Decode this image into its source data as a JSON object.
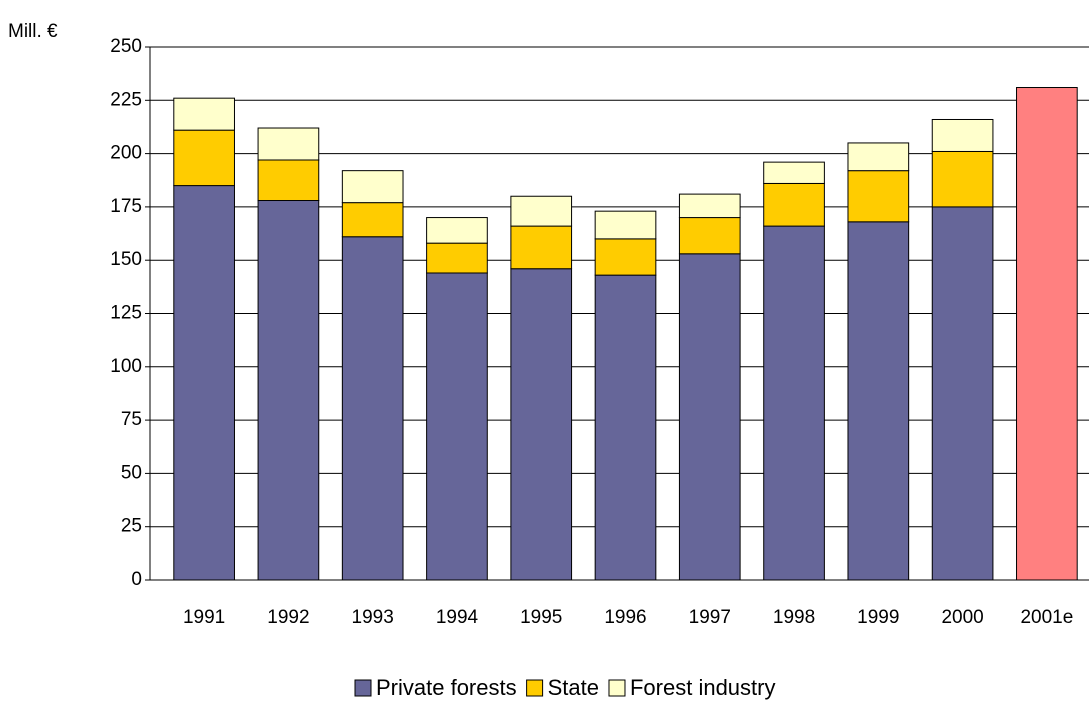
{
  "chart_data": {
    "type": "stacked_bar",
    "y_label": "Mill. €",
    "categories": [
      "1991",
      "1992",
      "1993",
      "1994",
      "1995",
      "1996",
      "1997",
      "1998",
      "1999",
      "2000",
      "2001e"
    ],
    "series": [
      {
        "name": "Private forests",
        "color": "#666699",
        "values": [
          185,
          178,
          161,
          144,
          146,
          143,
          153,
          166,
          168,
          175,
          null
        ]
      },
      {
        "name": "State",
        "color": "#ffcc00",
        "values": [
          26,
          19,
          16,
          14,
          20,
          17,
          17,
          20,
          24,
          26,
          null
        ]
      },
      {
        "name": "Forest industry",
        "color": "#ffffcc",
        "values": [
          15,
          15,
          15,
          12,
          14,
          13,
          11,
          10,
          13,
          15,
          null
        ]
      },
      {
        "color": "#ff8080",
        "values": [
          null,
          null,
          null,
          null,
          null,
          null,
          null,
          null,
          null,
          null,
          231
        ]
      }
    ],
    "ylim": [
      0,
      250
    ],
    "yticks": [
      0,
      25,
      50,
      75,
      100,
      125,
      150,
      175,
      200,
      225,
      250
    ],
    "grid": true
  }
}
